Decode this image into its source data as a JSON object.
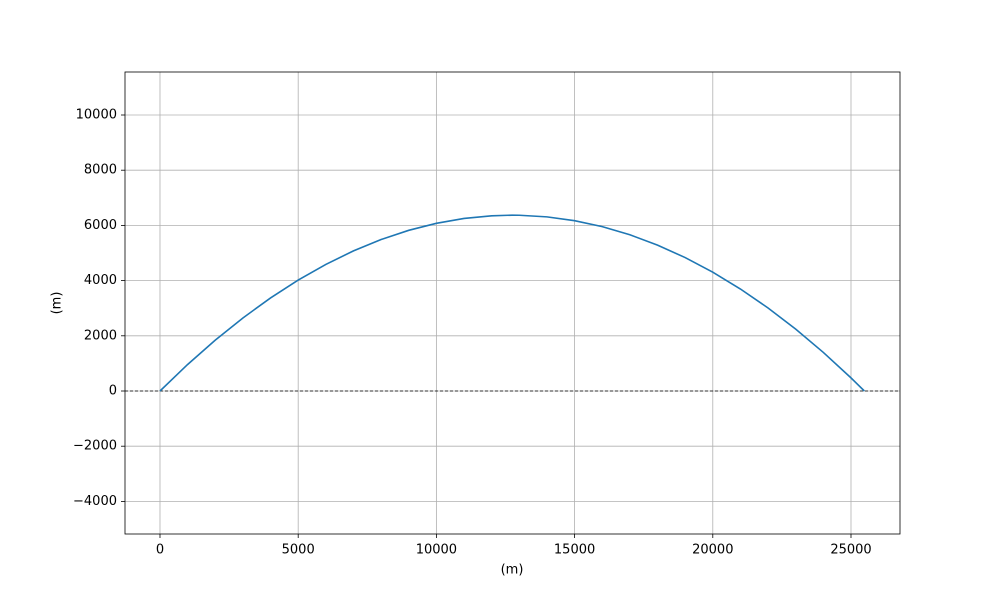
{
  "chart_data": {
    "type": "line",
    "xlabel": "(m)",
    "ylabel": "(m)",
    "x": [
      0,
      1000,
      2000,
      3000,
      4000,
      5000,
      6000,
      7000,
      8000,
      9000,
      10000,
      11000,
      12000,
      12742,
      13000,
      14000,
      15000,
      16000,
      17000,
      18000,
      19000,
      20000,
      21000,
      22000,
      23000,
      24000,
      25000,
      25484
    ],
    "series": [
      {
        "color": "#1f77b4",
        "values": [
          0,
          961,
          1843,
          2647,
          3372,
          4019,
          4587,
          5077,
          5489,
          5822,
          6076,
          6252,
          6349,
          6371,
          6368,
          6309,
          6171,
          5955,
          5660,
          5286,
          4834,
          4304,
          3695,
          3008,
          2242,
          1398,
          475,
          0
        ]
      }
    ],
    "xlim": [
      -1266,
      26773
    ],
    "ylim": [
      -5181,
      11558
    ],
    "xticks": [
      0,
      5000,
      10000,
      15000,
      20000,
      25000
    ],
    "yticks": [
      {
        "value": -4000,
        "label": "−4000"
      },
      {
        "value": -2000,
        "label": "−2000"
      },
      0,
      2000,
      4000,
      6000,
      8000,
      10000
    ],
    "axhline": 0,
    "grid": true
  }
}
